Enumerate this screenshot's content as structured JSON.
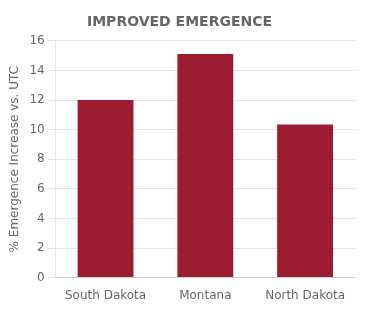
{
  "chart_data": {
    "type": "bar",
    "title": "IMPROVED EMERGENCE",
    "categories": [
      "South Dakota",
      "Montana",
      "North Dakota"
    ],
    "values": [
      12.0,
      15.1,
      10.35
    ],
    "color": "#9B1B30",
    "ylabel": "% Emergence Increase vs. UTC",
    "ylim": [
      0,
      16
    ],
    "yticks": [
      0,
      2,
      4,
      6,
      8,
      10,
      12,
      14,
      16
    ],
    "grid": true
  }
}
